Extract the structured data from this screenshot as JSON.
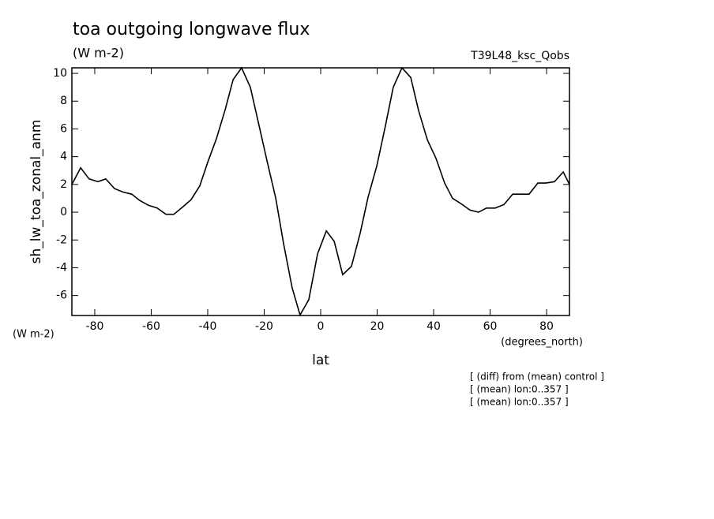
{
  "chart_data": {
    "type": "line",
    "title": "toa outgoing longwave flux",
    "subtitle": "(W m-2)",
    "dataset": "T39L48_ksc_Qobs",
    "y_label": "sh_lw_toa_zonal_anm",
    "y_units": "(W m-2)",
    "x_label": "lat",
    "x_units": "(degrees_north)",
    "notes": [
      "[ (diff) from (mean) control ]",
      "[ (mean) lon:0..357 ]",
      "[ (mean) lon:0..357 ]"
    ],
    "x": [
      -88.1,
      -85.0,
      -82.0,
      -78.9,
      -76.1,
      -73.0,
      -70.0,
      -66.9,
      -64.1,
      -61.0,
      -57.9,
      -54.8,
      -52.0,
      -49.0,
      -45.9,
      -42.8,
      -40.0,
      -36.9,
      -33.8,
      -31.0,
      -28.0,
      -24.9,
      -22.1,
      -19.0,
      -15.9,
      -13.1,
      -10.1,
      -7.3,
      -4.2,
      -1.1,
      2.0,
      4.8,
      7.8,
      10.9,
      14.0,
      16.8,
      19.9,
      22.9,
      25.7,
      28.8,
      31.9,
      34.7,
      37.8,
      40.8,
      43.9,
      46.7,
      49.8,
      52.9,
      55.9,
      58.7,
      61.8,
      64.9,
      68.0,
      70.8,
      73.8,
      76.9,
      79.7,
      82.8,
      85.9,
      88.1
    ],
    "series": [
      {
        "color": "#000000",
        "values": [
          2.0,
          3.2,
          2.4,
          2.2,
          2.4,
          1.7,
          1.45,
          1.3,
          0.85,
          0.5,
          0.3,
          -0.15,
          -0.15,
          0.35,
          0.9,
          1.9,
          3.6,
          5.3,
          7.4,
          9.55,
          10.4,
          9.0,
          6.5,
          3.7,
          1.0,
          -2.3,
          -5.45,
          -7.4,
          -6.3,
          -3.0,
          -1.35,
          -2.1,
          -4.5,
          -3.9,
          -1.5,
          1.1,
          3.35,
          6.2,
          9.0,
          10.4,
          9.7,
          7.3,
          5.2,
          3.9,
          2.1,
          1.0,
          0.6,
          0.15,
          0.0,
          0.3,
          0.3,
          0.55,
          1.3,
          1.3,
          1.3,
          2.1,
          2.1,
          2.2,
          2.9,
          2.0
        ]
      }
    ],
    "xlim": [
      -88.1,
      88.1
    ],
    "ylim": [
      -7.44,
      10.4
    ],
    "xticks": [
      -80,
      -60,
      -40,
      -20,
      0,
      20,
      40,
      60,
      80
    ],
    "yticks": [
      -6,
      -4,
      -2,
      0,
      2,
      4,
      6,
      8,
      10
    ]
  }
}
